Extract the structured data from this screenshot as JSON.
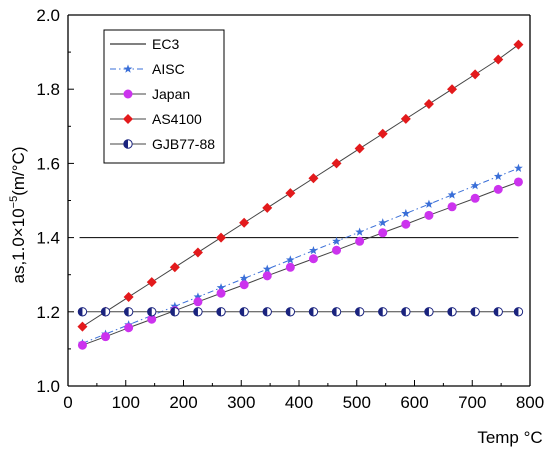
{
  "chart_data": {
    "type": "line",
    "title": "",
    "xlabel": "Temp °C",
    "ylabel_parts": {
      "prefix": "as,1.0×10",
      "exponent": "−5",
      "suffix": "(m/°C)"
    },
    "xlim": [
      0,
      800
    ],
    "ylim": [
      1.0,
      2.0
    ],
    "x_ticks": [
      "0",
      "100",
      "200",
      "300",
      "400",
      "500",
      "600",
      "700",
      "800"
    ],
    "y_ticks": [
      "1.0",
      "1.2",
      "1.4",
      "1.6",
      "1.8",
      "2.0"
    ],
    "grid": false,
    "legend_position": "top-left",
    "series": [
      {
        "name": "EC3",
        "color": "#000000",
        "marker": "none",
        "dash": "solid",
        "x": [
          20,
          780
        ],
        "y": [
          1.4,
          1.4
        ]
      },
      {
        "name": "AISC",
        "color": "#3a6fd8",
        "marker": "star",
        "dash": "dashdot",
        "x": [
          25,
          65,
          105,
          145,
          185,
          225,
          265,
          305,
          345,
          385,
          425,
          465,
          505,
          545,
          585,
          625,
          665,
          705,
          745,
          780
        ],
        "y": [
          1.115,
          1.14,
          1.165,
          1.19,
          1.215,
          1.24,
          1.265,
          1.29,
          1.315,
          1.34,
          1.365,
          1.39,
          1.415,
          1.44,
          1.465,
          1.49,
          1.515,
          1.54,
          1.565,
          1.587
        ]
      },
      {
        "name": "Japan",
        "color": "#cc33ee",
        "marker": "circle",
        "dash": "solid",
        "x": [
          25,
          65,
          105,
          145,
          185,
          225,
          265,
          305,
          345,
          385,
          425,
          465,
          505,
          545,
          585,
          625,
          665,
          705,
          745,
          780
        ],
        "y": [
          1.11,
          1.133,
          1.157,
          1.18,
          1.203,
          1.227,
          1.25,
          1.273,
          1.297,
          1.32,
          1.343,
          1.366,
          1.39,
          1.413,
          1.436,
          1.46,
          1.483,
          1.506,
          1.53,
          1.55
        ]
      },
      {
        "name": "AS4100",
        "color": "#e31a1c",
        "marker": "diamond",
        "dash": "solid",
        "x": [
          25,
          65,
          105,
          145,
          185,
          225,
          265,
          305,
          345,
          385,
          425,
          465,
          505,
          545,
          585,
          625,
          665,
          705,
          745,
          780
        ],
        "y": [
          1.16,
          1.2,
          1.24,
          1.28,
          1.32,
          1.36,
          1.4,
          1.44,
          1.48,
          1.52,
          1.56,
          1.6,
          1.64,
          1.68,
          1.72,
          1.76,
          1.8,
          1.84,
          1.88,
          1.92
        ]
      },
      {
        "name": "GJB77-88",
        "color": "#1a237e",
        "marker": "halfcircle",
        "dash": "solid",
        "x": [
          25,
          65,
          105,
          145,
          185,
          225,
          265,
          305,
          345,
          385,
          425,
          465,
          505,
          545,
          585,
          625,
          665,
          705,
          745,
          780
        ],
        "y": [
          1.2,
          1.2,
          1.2,
          1.2,
          1.2,
          1.2,
          1.2,
          1.2,
          1.2,
          1.2,
          1.2,
          1.2,
          1.2,
          1.2,
          1.2,
          1.2,
          1.2,
          1.2,
          1.2,
          1.2
        ]
      }
    ]
  }
}
